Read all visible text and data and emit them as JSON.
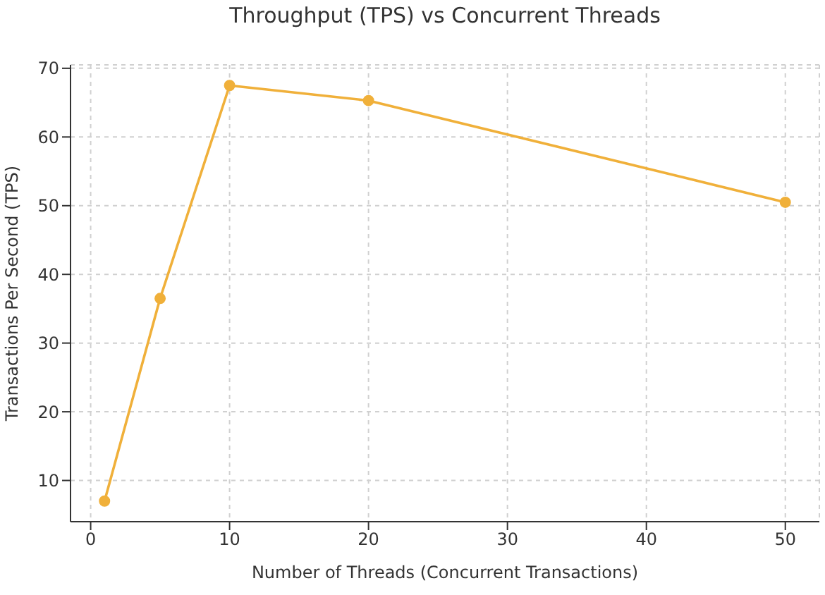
{
  "chart_data": {
    "type": "line",
    "title": "Throughput (TPS) vs Concurrent Threads",
    "xlabel": "Number of Threads (Concurrent Transactions)",
    "ylabel": "Transactions Per Second (TPS)",
    "x": [
      1,
      5,
      10,
      20,
      50
    ],
    "series": [
      {
        "color": "#f0b03a",
        "values": [
          7,
          36.5,
          67.5,
          65.3,
          50.5
        ]
      }
    ],
    "xlim": [
      -1.45,
      52.45
    ],
    "xticks": [
      0,
      10,
      20,
      30,
      40,
      50
    ],
    "ylim": [
      4,
      70.5
    ],
    "yticks": [
      10,
      20,
      30,
      40,
      50,
      60,
      70
    ],
    "grid": true,
    "marker": "circle",
    "line_style": "solid",
    "legend": false
  }
}
